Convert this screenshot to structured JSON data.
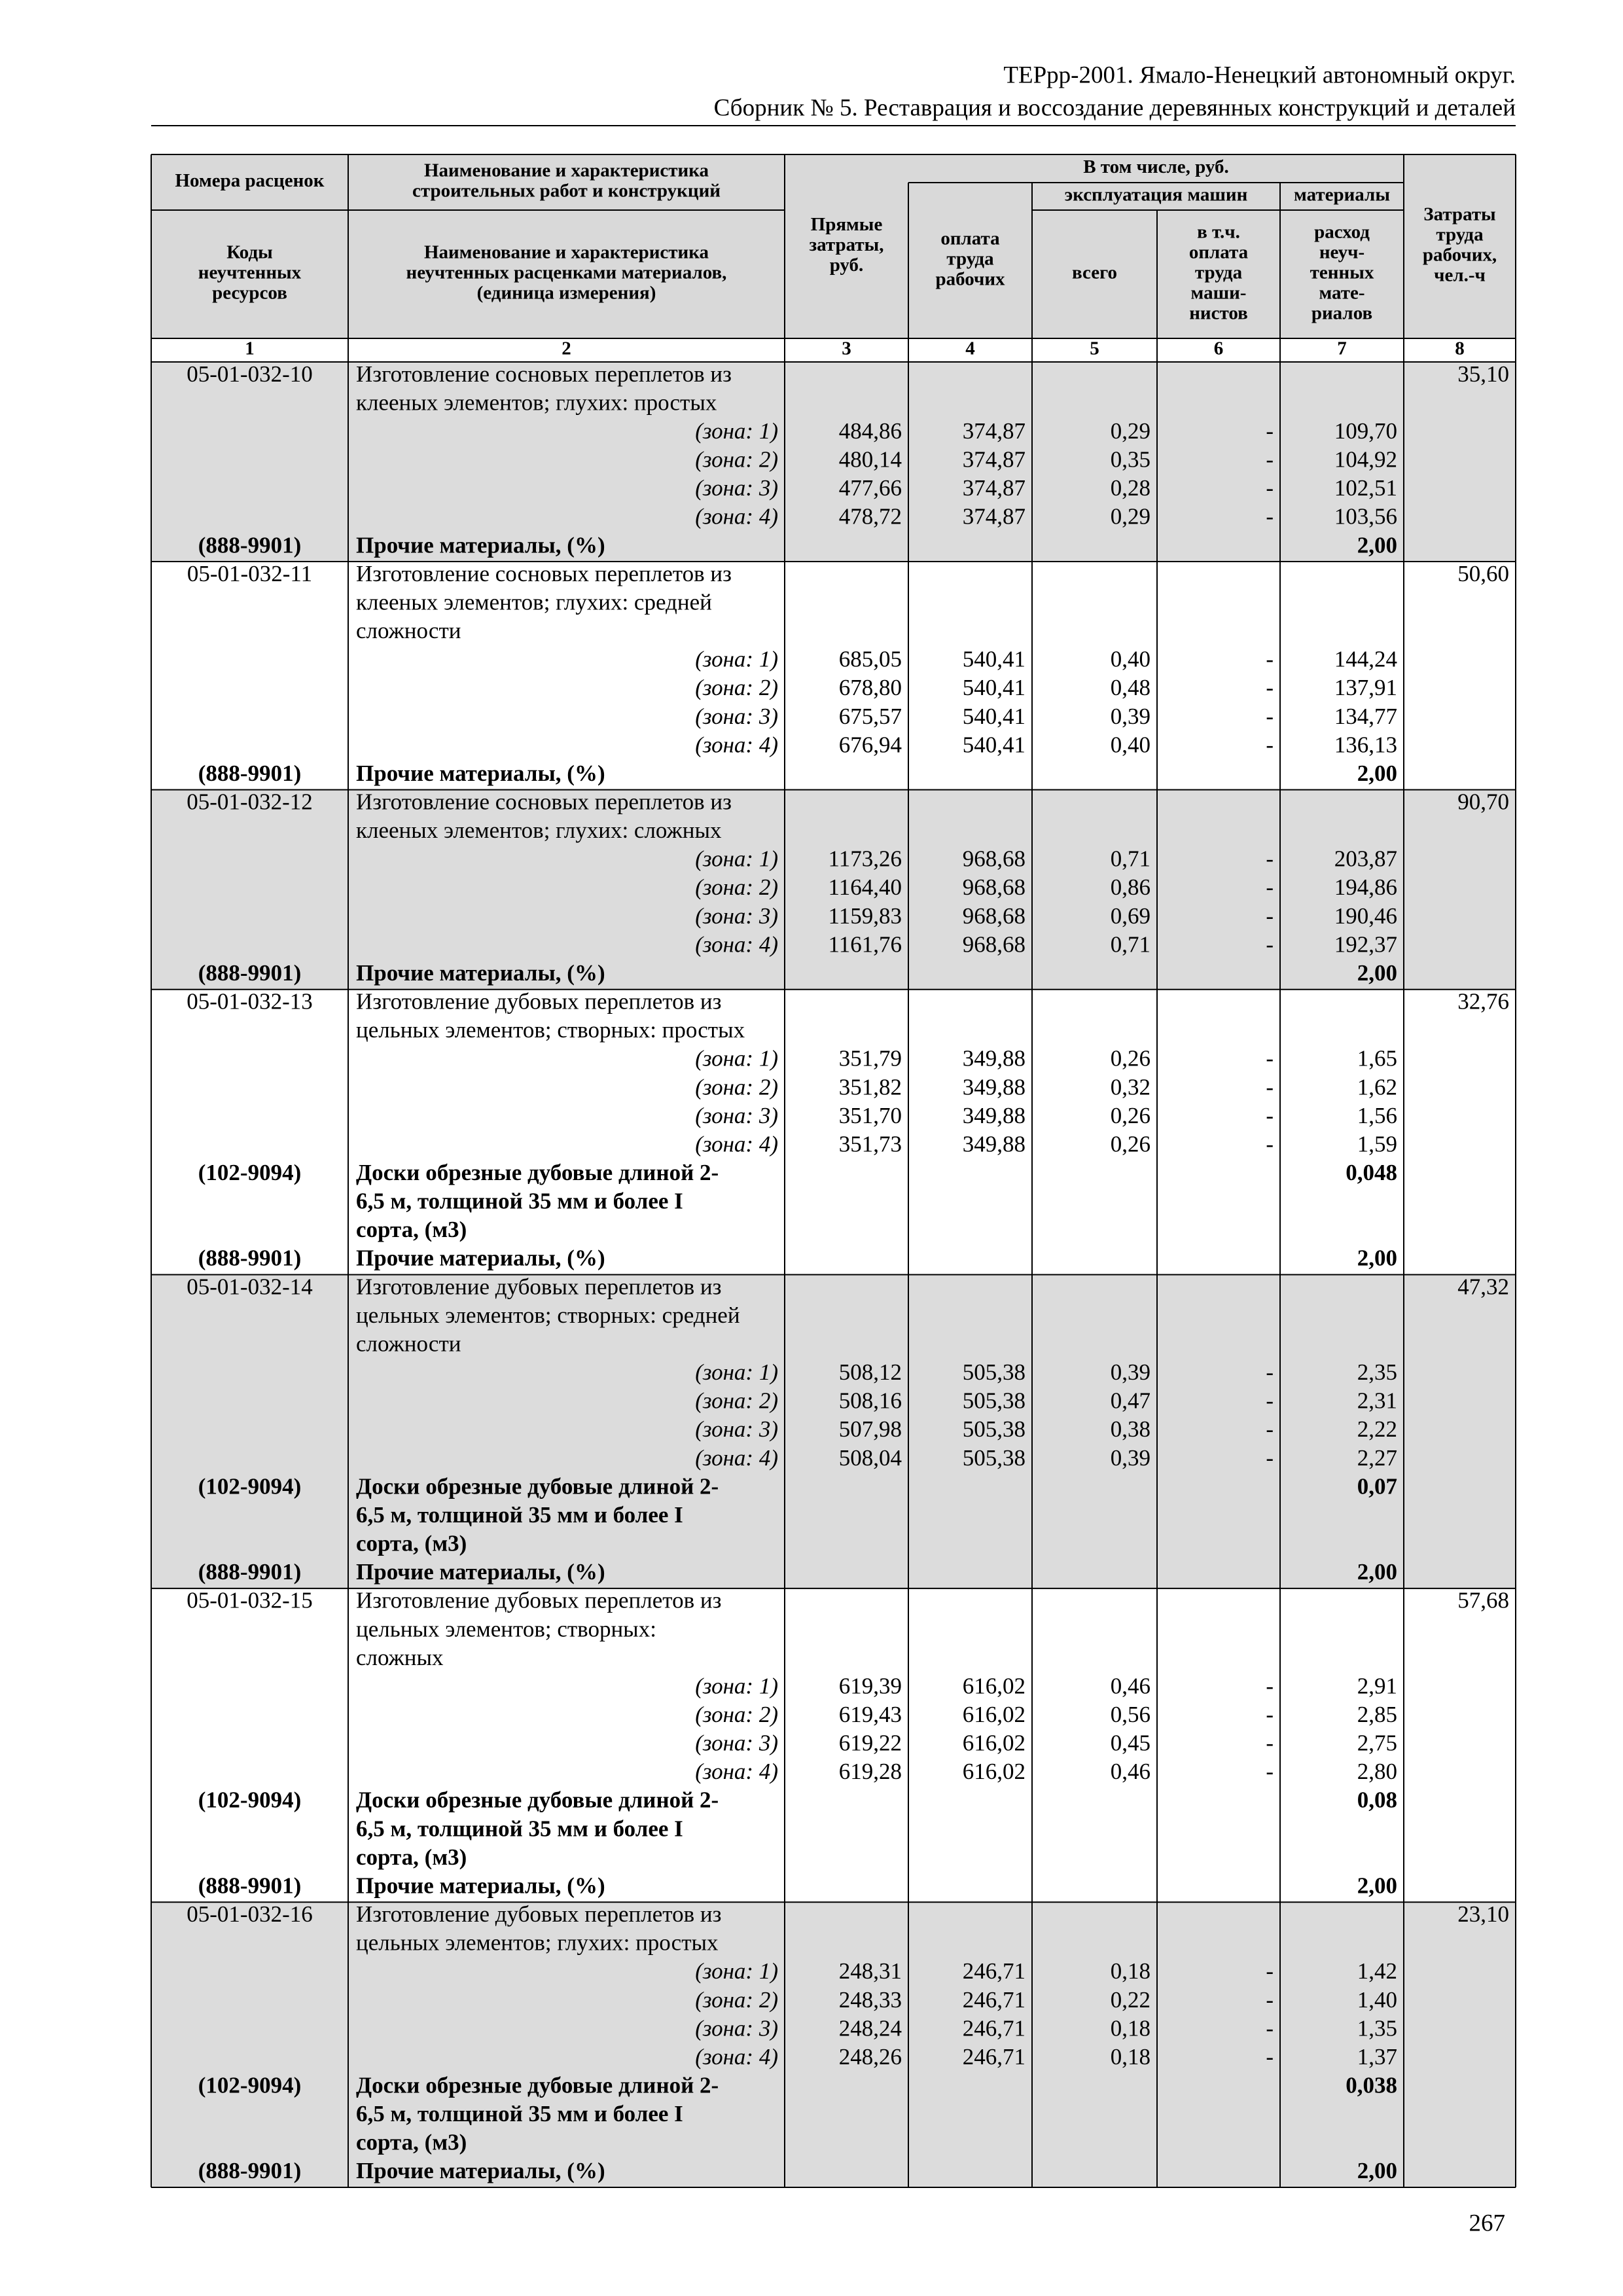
{
  "header": {
    "line1": "ТЕРрр-2001. Ямало-Ненецкий автономный округ.",
    "line2": "Сборник № 5. Реставрация и воссоздание деревянных конструкций и деталей"
  },
  "table": {
    "head": {
      "rate_numbers": "Номера расценок",
      "work_name": [
        "Наименование и характеристика",
        "строительных работ и конструкций"
      ],
      "resource_codes": [
        "Коды",
        "неучтенных",
        "ресурсов"
      ],
      "resource_name": [
        "Наименование и характеристика",
        "неучтенных расценками материалов,",
        "(единица измерения)"
      ],
      "direct_costs": [
        "Прямые",
        "затраты,",
        "руб."
      ],
      "including": "В том числе, руб.",
      "labor_pay": [
        "оплата",
        "труда",
        "рабочих"
      ],
      "machine_operation": "эксплуатация машин",
      "materials": "материалы",
      "machines_total": "всего",
      "machinist_pay": [
        "в т.ч.",
        "оплата",
        "труда",
        "маши-",
        "нистов"
      ],
      "unaccounted_materials": [
        "расход",
        "неуч-",
        "тенных",
        "мате-",
        "риалов"
      ],
      "labor_hours": [
        "Затраты",
        "труда",
        "рабочих,",
        "чел.-ч"
      ]
    },
    "column_numbers": [
      "1",
      "2",
      "3",
      "4",
      "5",
      "6",
      "7",
      "8"
    ],
    "blocks": [
      {
        "code": "05-01-032-10",
        "description": [
          "Изготовление сосновых переплетов из",
          "клееных элементов; глухих: простых"
        ],
        "labor_hours": "35,10",
        "zones": [
          [
            "(зона: 1)",
            "484,86",
            "374,87",
            "0,29",
            "-",
            "109,70"
          ],
          [
            "(зона: 2)",
            "480,14",
            "374,87",
            "0,35",
            "-",
            "104,92"
          ],
          [
            "(зона: 3)",
            "477,66",
            "374,87",
            "0,28",
            "-",
            "102,51"
          ],
          [
            "(зона: 4)",
            "478,72",
            "374,87",
            "0,29",
            "-",
            "103,56"
          ]
        ],
        "resources": [
          {
            "code": "(888-9901)",
            "name": [
              "Прочие материалы, (%)"
            ],
            "value": "2,00"
          }
        ]
      },
      {
        "code": "05-01-032-11",
        "description": [
          "Изготовление сосновых переплетов из",
          "клееных элементов; глухих: средней",
          "сложности"
        ],
        "labor_hours": "50,60",
        "zones": [
          [
            "(зона: 1)",
            "685,05",
            "540,41",
            "0,40",
            "-",
            "144,24"
          ],
          [
            "(зона: 2)",
            "678,80",
            "540,41",
            "0,48",
            "-",
            "137,91"
          ],
          [
            "(зона: 3)",
            "675,57",
            "540,41",
            "0,39",
            "-",
            "134,77"
          ],
          [
            "(зона: 4)",
            "676,94",
            "540,41",
            "0,40",
            "-",
            "136,13"
          ]
        ],
        "resources": [
          {
            "code": "(888-9901)",
            "name": [
              "Прочие материалы, (%)"
            ],
            "value": "2,00"
          }
        ]
      },
      {
        "code": "05-01-032-12",
        "description": [
          "Изготовление сосновых переплетов из",
          "клееных элементов; глухих: сложных"
        ],
        "labor_hours": "90,70",
        "zones": [
          [
            "(зона: 1)",
            "1173,26",
            "968,68",
            "0,71",
            "-",
            "203,87"
          ],
          [
            "(зона: 2)",
            "1164,40",
            "968,68",
            "0,86",
            "-",
            "194,86"
          ],
          [
            "(зона: 3)",
            "1159,83",
            "968,68",
            "0,69",
            "-",
            "190,46"
          ],
          [
            "(зона: 4)",
            "1161,76",
            "968,68",
            "0,71",
            "-",
            "192,37"
          ]
        ],
        "resources": [
          {
            "code": "(888-9901)",
            "name": [
              "Прочие материалы, (%)"
            ],
            "value": "2,00"
          }
        ]
      },
      {
        "code": "05-01-032-13",
        "description": [
          "Изготовление дубовых переплетов из",
          "цельных элементов; створных: простых"
        ],
        "labor_hours": "32,76",
        "zones": [
          [
            "(зона: 1)",
            "351,79",
            "349,88",
            "0,26",
            "-",
            "1,65"
          ],
          [
            "(зона: 2)",
            "351,82",
            "349,88",
            "0,32",
            "-",
            "1,62"
          ],
          [
            "(зона: 3)",
            "351,70",
            "349,88",
            "0,26",
            "-",
            "1,56"
          ],
          [
            "(зона: 4)",
            "351,73",
            "349,88",
            "0,26",
            "-",
            "1,59"
          ]
        ],
        "resources": [
          {
            "code": "(102-9094)",
            "name": [
              "Доски обрезные дубовые длиной 2-",
              "6,5 м, толщиной 35 мм и более I",
              "сорта, (м3)"
            ],
            "value": "0,048"
          },
          {
            "code": "(888-9901)",
            "name": [
              "Прочие материалы, (%)"
            ],
            "value": "2,00"
          }
        ]
      },
      {
        "code": "05-01-032-14",
        "description": [
          "Изготовление дубовых переплетов из",
          "цельных элементов; створных: средней",
          "сложности"
        ],
        "labor_hours": "47,32",
        "zones": [
          [
            "(зона: 1)",
            "508,12",
            "505,38",
            "0,39",
            "-",
            "2,35"
          ],
          [
            "(зона: 2)",
            "508,16",
            "505,38",
            "0,47",
            "-",
            "2,31"
          ],
          [
            "(зона: 3)",
            "507,98",
            "505,38",
            "0,38",
            "-",
            "2,22"
          ],
          [
            "(зона: 4)",
            "508,04",
            "505,38",
            "0,39",
            "-",
            "2,27"
          ]
        ],
        "resources": [
          {
            "code": "(102-9094)",
            "name": [
              "Доски обрезные дубовые длиной 2-",
              "6,5 м, толщиной 35 мм и более I",
              "сорта, (м3)"
            ],
            "value": "0,07"
          },
          {
            "code": "(888-9901)",
            "name": [
              "Прочие материалы, (%)"
            ],
            "value": "2,00"
          }
        ]
      },
      {
        "code": "05-01-032-15",
        "description": [
          "Изготовление дубовых переплетов из",
          "цельных элементов; створных:",
          "сложных"
        ],
        "labor_hours": "57,68",
        "zones": [
          [
            "(зона: 1)",
            "619,39",
            "616,02",
            "0,46",
            "-",
            "2,91"
          ],
          [
            "(зона: 2)",
            "619,43",
            "616,02",
            "0,56",
            "-",
            "2,85"
          ],
          [
            "(зона: 3)",
            "619,22",
            "616,02",
            "0,45",
            "-",
            "2,75"
          ],
          [
            "(зона: 4)",
            "619,28",
            "616,02",
            "0,46",
            "-",
            "2,80"
          ]
        ],
        "resources": [
          {
            "code": "(102-9094)",
            "name": [
              "Доски обрезные дубовые длиной 2-",
              "6,5 м, толщиной 35 мм и более I",
              "сорта, (м3)"
            ],
            "value": "0,08"
          },
          {
            "code": "(888-9901)",
            "name": [
              "Прочие материалы, (%)"
            ],
            "value": "2,00"
          }
        ]
      },
      {
        "code": "05-01-032-16",
        "description": [
          "Изготовление дубовых переплетов из",
          "цельных элементов; глухих: простых"
        ],
        "labor_hours": "23,10",
        "zones": [
          [
            "(зона: 1)",
            "248,31",
            "246,71",
            "0,18",
            "-",
            "1,42"
          ],
          [
            "(зона: 2)",
            "248,33",
            "246,71",
            "0,22",
            "-",
            "1,40"
          ],
          [
            "(зона: 3)",
            "248,24",
            "246,71",
            "0,18",
            "-",
            "1,35"
          ],
          [
            "(зона: 4)",
            "248,26",
            "246,71",
            "0,18",
            "-",
            "1,37"
          ]
        ],
        "resources": [
          {
            "code": "(102-9094)",
            "name": [
              "Доски обрезные дубовые длиной 2-",
              "6,5 м, толщиной 35 мм и более I",
              "сорта, (м3)"
            ],
            "value": "0,038"
          },
          {
            "code": "(888-9901)",
            "name": [
              "Прочие материалы, (%)"
            ],
            "value": "2,00"
          }
        ]
      }
    ]
  },
  "page_number": "267"
}
